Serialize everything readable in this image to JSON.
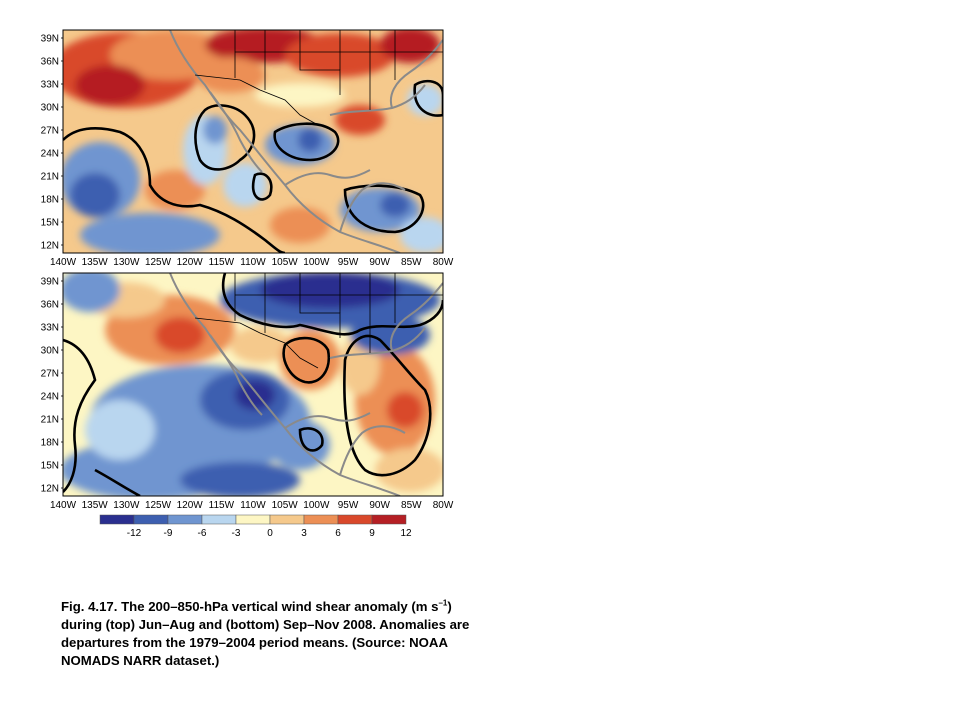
{
  "figure": {
    "panels": [
      {
        "id": "top",
        "period": "Jun–Aug 2008",
        "lat_ticks": [
          "39N",
          "36N",
          "33N",
          "30N",
          "27N",
          "24N",
          "21N",
          "18N",
          "15N",
          "12N"
        ],
        "lon_ticks": [
          "140W",
          "135W",
          "130W",
          "125W",
          "120W",
          "115W",
          "110W",
          "105W",
          "100W",
          "95W",
          "90W",
          "85W",
          "80W"
        ]
      },
      {
        "id": "bottom",
        "period": "Sep–Nov 2008",
        "lat_ticks": [
          "39N",
          "36N",
          "33N",
          "30N",
          "27N",
          "24N",
          "21N",
          "18N",
          "15N",
          "12N"
        ],
        "lon_ticks": [
          "140W",
          "135W",
          "130W",
          "125W",
          "120W",
          "115W",
          "110W",
          "105W",
          "100W",
          "95W",
          "90W",
          "85W",
          "80W"
        ]
      }
    ],
    "colorbar": {
      "colors": [
        "#2a2f8f",
        "#3d5fb0",
        "#6f95d0",
        "#b9d6ef",
        "#fdf6c4",
        "#f5c98c",
        "#ec8f55",
        "#d9482b",
        "#b51f24"
      ],
      "labels": [
        "-12",
        "-9",
        "-6",
        "-3",
        "0",
        "3",
        "6",
        "9",
        "12"
      ]
    }
  },
  "caption": {
    "fig_label": "Fig. 4.17.",
    "text_before_sup": " The 200–850-hPa vertical wind shear anomaly (m s",
    "sup": "–1",
    "text_after_sup": ") during (top) Jun–Aug and (bottom) Sep–Nov 2008. Anomalies are departures from the 1979–2004 period means. (Source: NOAA NOMADS NARR dataset.)"
  }
}
